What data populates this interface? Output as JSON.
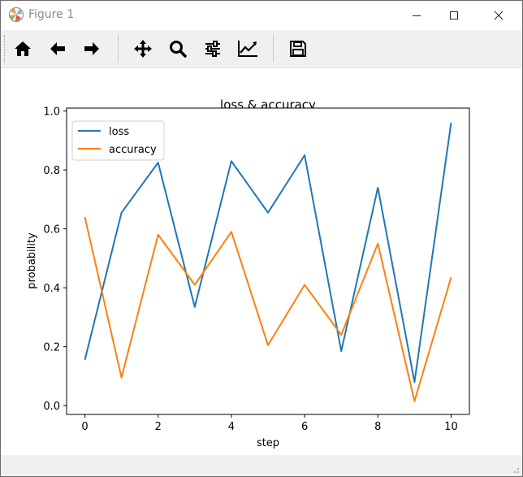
{
  "window": {
    "title": "Figure 1",
    "controls": [
      "minimize",
      "maximize",
      "close"
    ]
  },
  "toolbar": {
    "buttons": [
      {
        "name": "home",
        "icon": "home-icon"
      },
      {
        "name": "back",
        "icon": "arrow-left-icon"
      },
      {
        "name": "forward",
        "icon": "arrow-right-icon"
      },
      {
        "name": "pan",
        "icon": "move-icon"
      },
      {
        "name": "zoom",
        "icon": "search-icon"
      },
      {
        "name": "configure-subplots",
        "icon": "sliders-icon"
      },
      {
        "name": "edit-axis",
        "icon": "chart-line-icon"
      },
      {
        "name": "save",
        "icon": "floppy-disk-icon"
      }
    ]
  },
  "chart_data": {
    "type": "line",
    "title": "loss & accuracy",
    "xlabel": "step",
    "ylabel": "probability",
    "x": [
      0,
      1,
      2,
      3,
      4,
      5,
      6,
      7,
      8,
      9,
      10
    ],
    "xlim": [
      -0.5,
      10.5
    ],
    "ylim": [
      -0.03,
      1.01
    ],
    "xticks": [
      0,
      2,
      4,
      6,
      8,
      10
    ],
    "yticks": [
      0.0,
      0.2,
      0.4,
      0.6,
      0.8,
      1.0
    ],
    "ytick_labels": [
      "0.0",
      "0.2",
      "0.4",
      "0.6",
      "0.8",
      "1.0"
    ],
    "legend_position": "upper left",
    "grid": false,
    "series": [
      {
        "name": "loss",
        "color": "#1f77b4",
        "values": [
          0.155,
          0.655,
          0.825,
          0.335,
          0.83,
          0.655,
          0.85,
          0.185,
          0.74,
          0.08,
          0.96
        ]
      },
      {
        "name": "accuracy",
        "color": "#ff7f0e",
        "values": [
          0.64,
          0.095,
          0.58,
          0.41,
          0.59,
          0.205,
          0.41,
          0.24,
          0.55,
          0.015,
          0.435
        ]
      }
    ]
  }
}
